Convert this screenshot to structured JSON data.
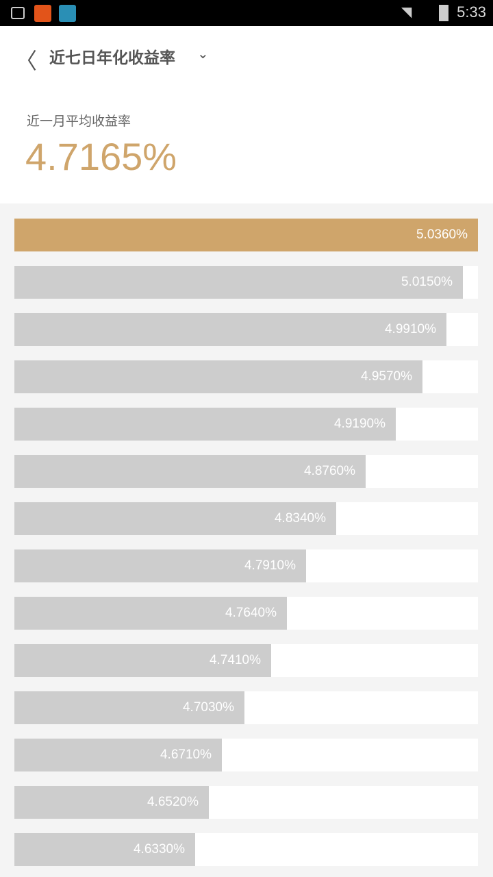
{
  "status_bar": {
    "time": "5:33",
    "icons": [
      "gallery-icon",
      "taobao-app-icon",
      "nox-app-icon",
      "wifi-icon",
      "signal-icon",
      "battery-charging-icon"
    ]
  },
  "header": {
    "title": "近七日年化收益率",
    "back_icon": "chevron-left-icon",
    "dropdown_icon": "chevron-down-icon"
  },
  "summary": {
    "label": "近一月平均收益率",
    "value": "4.7165%"
  },
  "colors": {
    "accent": "#cfa56b",
    "bar": "#cdcdcd",
    "track": "#ffffff",
    "background": "#f4f4f4"
  },
  "chart_data": {
    "type": "bar",
    "orientation": "horizontal",
    "values": [
      5.036,
      5.015,
      4.991,
      4.957,
      4.919,
      4.876,
      4.834,
      4.791,
      4.764,
      4.741,
      4.703,
      4.671,
      4.652,
      4.633
    ],
    "labels": [
      "5.0360%",
      "5.0150%",
      "4.9910%",
      "4.9570%",
      "4.9190%",
      "4.8760%",
      "4.8340%",
      "4.7910%",
      "4.7640%",
      "4.7410%",
      "4.7030%",
      "4.6710%",
      "4.6520%",
      "4.6330%"
    ],
    "highlight_index": 0
  }
}
